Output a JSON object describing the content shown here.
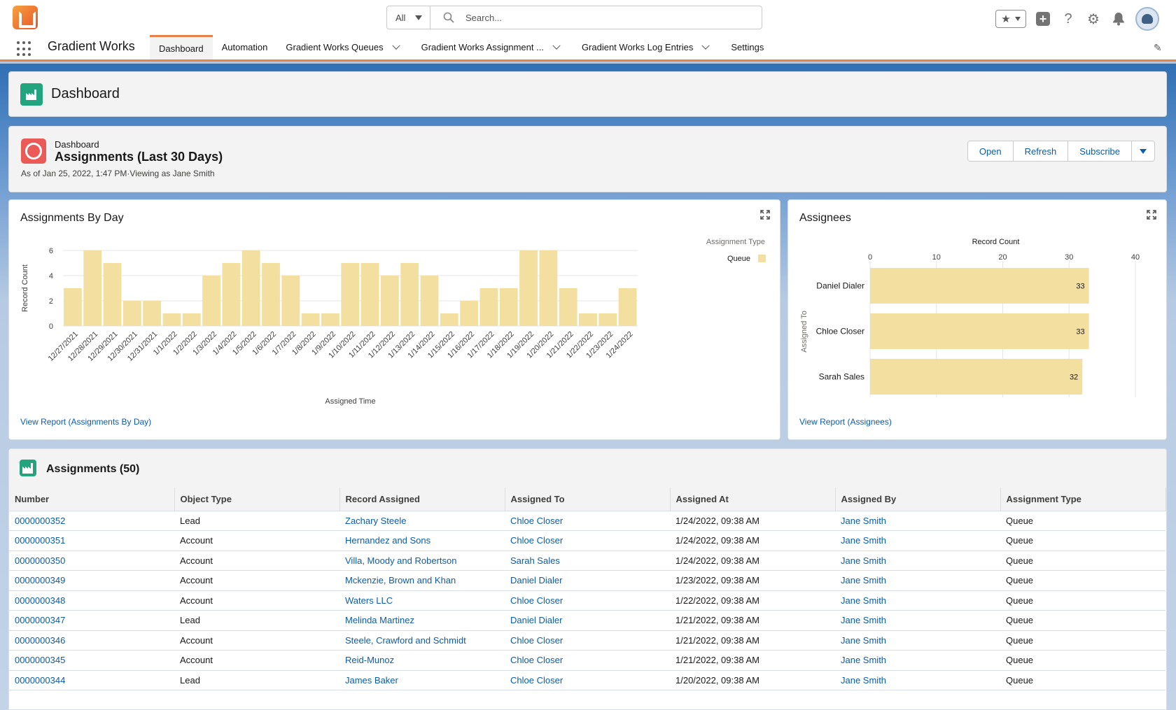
{
  "header": {
    "search_scope": "All",
    "search_placeholder": "Search..."
  },
  "nav": {
    "app_name": "Gradient Works",
    "tabs": [
      {
        "label": "Dashboard",
        "active": true,
        "has_menu": false
      },
      {
        "label": "Automation",
        "active": false,
        "has_menu": false
      },
      {
        "label": "Gradient Works Queues",
        "active": false,
        "has_menu": true
      },
      {
        "label": "Gradient Works Assignment ...",
        "active": false,
        "has_menu": true
      },
      {
        "label": "Gradient Works Log Entries",
        "active": false,
        "has_menu": true
      },
      {
        "label": "Settings",
        "active": false,
        "has_menu": false
      }
    ]
  },
  "page": {
    "title": "Dashboard"
  },
  "dashboard": {
    "kicker": "Dashboard",
    "title": "Assignments (Last 30 Days)",
    "as_of": "As of Jan 25, 2022, 1:47 PM·Viewing as Jane Smith",
    "buttons": {
      "open": "Open",
      "refresh": "Refresh",
      "subscribe": "Subscribe"
    }
  },
  "charts": {
    "by_day": {
      "title": "Assignments By Day",
      "view_report": "View Report (Assignments By Day)"
    },
    "assignees": {
      "title": "Assignees",
      "view_report": "View Report (Assignees)"
    }
  },
  "chart_data": [
    {
      "type": "bar",
      "title": "Assignments By Day",
      "xlabel": "Assigned Time",
      "ylabel": "Record Count",
      "ylim": [
        0,
        6
      ],
      "yticks": [
        0,
        2,
        4,
        6
      ],
      "legend_title": "Assignment Type",
      "legend_placement": "top-right",
      "categories": [
        "12/27/2021",
        "12/28/2021",
        "12/29/2021",
        "12/30/2021",
        "12/31/2021",
        "1/1/2022",
        "1/2/2022",
        "1/3/2022",
        "1/4/2022",
        "1/5/2022",
        "1/6/2022",
        "1/7/2022",
        "1/8/2022",
        "1/9/2022",
        "1/10/2022",
        "1/11/2022",
        "1/12/2022",
        "1/13/2022",
        "1/14/2022",
        "1/15/2022",
        "1/16/2022",
        "1/17/2022",
        "1/18/2022",
        "1/19/2022",
        "1/20/2022",
        "1/21/2022",
        "1/22/2022",
        "1/23/2022",
        "1/24/2022"
      ],
      "series": [
        {
          "name": "Queue",
          "color": "#f3df9f",
          "values": [
            3,
            6,
            5,
            2,
            2,
            1,
            1,
            4,
            5,
            6,
            5,
            4,
            1,
            1,
            5,
            5,
            4,
            5,
            4,
            1,
            2,
            3,
            3,
            6,
            6,
            3,
            1,
            1,
            3
          ]
        }
      ],
      "grid": true
    },
    {
      "type": "bar",
      "orientation": "horizontal",
      "title": "Assignees",
      "xlabel": "Record Count",
      "ylabel": "Assigned To",
      "xlim": [
        0,
        40
      ],
      "xticks": [
        0,
        10,
        20,
        30,
        40
      ],
      "categories": [
        "Daniel Dialer",
        "Chloe Closer",
        "Sarah Sales"
      ],
      "values": [
        33,
        33,
        32
      ],
      "color": "#f3df9f",
      "grid": true
    }
  ],
  "table": {
    "title": "Assignments (50)",
    "columns": [
      "Number",
      "Object Type",
      "Record Assigned",
      "Assigned To",
      "Assigned At",
      "Assigned By",
      "Assignment Type"
    ],
    "rows": [
      [
        "0000000352",
        "Lead",
        "Zachary Steele",
        "Chloe Closer",
        "1/24/2022, 09:38 AM",
        "Jane Smith",
        "Queue"
      ],
      [
        "0000000351",
        "Account",
        "Hernandez and Sons",
        "Chloe Closer",
        "1/24/2022, 09:38 AM",
        "Jane Smith",
        "Queue"
      ],
      [
        "0000000350",
        "Account",
        "Villa, Moody and Robertson",
        "Sarah Sales",
        "1/24/2022, 09:38 AM",
        "Jane Smith",
        "Queue"
      ],
      [
        "0000000349",
        "Account",
        "Mckenzie, Brown and Khan",
        "Daniel Dialer",
        "1/23/2022, 09:38 AM",
        "Jane Smith",
        "Queue"
      ],
      [
        "0000000348",
        "Account",
        "Waters LLC",
        "Chloe Closer",
        "1/22/2022, 09:38 AM",
        "Jane Smith",
        "Queue"
      ],
      [
        "0000000347",
        "Lead",
        "Melinda Martinez",
        "Daniel Dialer",
        "1/21/2022, 09:38 AM",
        "Jane Smith",
        "Queue"
      ],
      [
        "0000000346",
        "Account",
        "Steele, Crawford and Schmidt",
        "Chloe Closer",
        "1/21/2022, 09:38 AM",
        "Jane Smith",
        "Queue"
      ],
      [
        "0000000345",
        "Account",
        "Reid-Munoz",
        "Chloe Closer",
        "1/21/2022, 09:38 AM",
        "Jane Smith",
        "Queue"
      ],
      [
        "0000000344",
        "Lead",
        "James Baker",
        "Chloe Closer",
        "1/20/2022, 09:38 AM",
        "Jane Smith",
        "Queue"
      ]
    ]
  }
}
